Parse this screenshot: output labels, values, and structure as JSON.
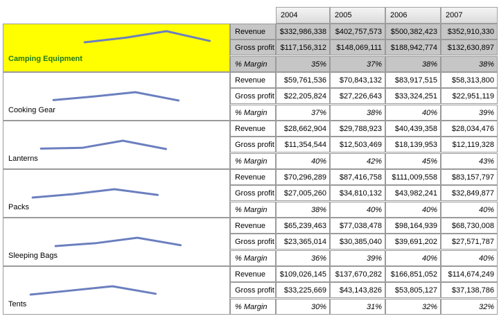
{
  "years": [
    "2004",
    "2005",
    "2006",
    "2007"
  ],
  "highlight_color": "#ffff00",
  "sparkline_color": "#6b7fbf",
  "categories": [
    {
      "name": "Camping Equipment",
      "highlighted": true,
      "rows": [
        {
          "metric": "Revenue",
          "values": [
            "$332,986,338",
            "$402,757,573",
            "$500,382,423",
            "$352,910,330"
          ]
        },
        {
          "metric": "Gross profit",
          "values": [
            "$117,156,312",
            "$148,069,111",
            "$188,942,774",
            "$132,630,897"
          ]
        },
        {
          "metric": "% Margin",
          "values": [
            "35%",
            "37%",
            "38%",
            "38%"
          ]
        }
      ],
      "revenue": [
        332986338,
        402757573,
        500382423,
        352910330
      ]
    },
    {
      "name": "Cooking Gear",
      "highlighted": false,
      "rows": [
        {
          "metric": "Revenue",
          "values": [
            "$59,761,536",
            "$70,843,132",
            "$83,917,515",
            "$58,313,800"
          ]
        },
        {
          "metric": "Gross profit",
          "values": [
            "$22,205,824",
            "$27,226,643",
            "$33,324,251",
            "$22,951,119"
          ]
        },
        {
          "metric": "% Margin",
          "values": [
            "37%",
            "38%",
            "40%",
            "39%"
          ]
        }
      ],
      "revenue": [
        59761536,
        70843132,
        83917515,
        58313800
      ]
    },
    {
      "name": "Lanterns",
      "highlighted": false,
      "rows": [
        {
          "metric": "Revenue",
          "values": [
            "$28,662,904",
            "$29,788,923",
            "$40,439,358",
            "$28,034,476"
          ]
        },
        {
          "metric": "Gross profit",
          "values": [
            "$11,354,544",
            "$12,503,469",
            "$18,139,953",
            "$12,119,328"
          ]
        },
        {
          "metric": "% Margin",
          "values": [
            "40%",
            "42%",
            "45%",
            "43%"
          ]
        }
      ],
      "revenue": [
        28662904,
        29788923,
        40439358,
        28034476
      ]
    },
    {
      "name": "Packs",
      "highlighted": false,
      "rows": [
        {
          "metric": "Revenue",
          "values": [
            "$70,296,289",
            "$87,416,758",
            "$111,009,558",
            "$83,157,797"
          ]
        },
        {
          "metric": "Gross profit",
          "values": [
            "$27,005,260",
            "$34,810,132",
            "$43,982,241",
            "$32,849,877"
          ]
        },
        {
          "metric": "% Margin",
          "values": [
            "38%",
            "40%",
            "40%",
            "40%"
          ]
        }
      ],
      "revenue": [
        70296289,
        87416758,
        111009558,
        83157797
      ]
    },
    {
      "name": "Sleeping Bags",
      "highlighted": false,
      "rows": [
        {
          "metric": "Revenue",
          "values": [
            "$65,239,463",
            "$77,038,478",
            "$98,164,939",
            "$68,730,008"
          ]
        },
        {
          "metric": "Gross profit",
          "values": [
            "$23,365,014",
            "$30,385,040",
            "$39,691,202",
            "$27,571,787"
          ]
        },
        {
          "metric": "% Margin",
          "values": [
            "36%",
            "39%",
            "40%",
            "40%"
          ]
        }
      ],
      "revenue": [
        65239463,
        77038478,
        98164939,
        68730008
      ]
    },
    {
      "name": "Tents",
      "highlighted": false,
      "rows": [
        {
          "metric": "Revenue",
          "values": [
            "$109,026,145",
            "$137,670,282",
            "$166,851,052",
            "$114,674,249"
          ]
        },
        {
          "metric": "Gross profit",
          "values": [
            "$33,225,669",
            "$43,143,826",
            "$53,805,127",
            "$37,138,786"
          ]
        },
        {
          "metric": "% Margin",
          "values": [
            "30%",
            "31%",
            "32%",
            "32%"
          ]
        }
      ],
      "revenue": [
        109026145,
        137670282,
        166851052,
        114674249
      ]
    }
  ]
}
